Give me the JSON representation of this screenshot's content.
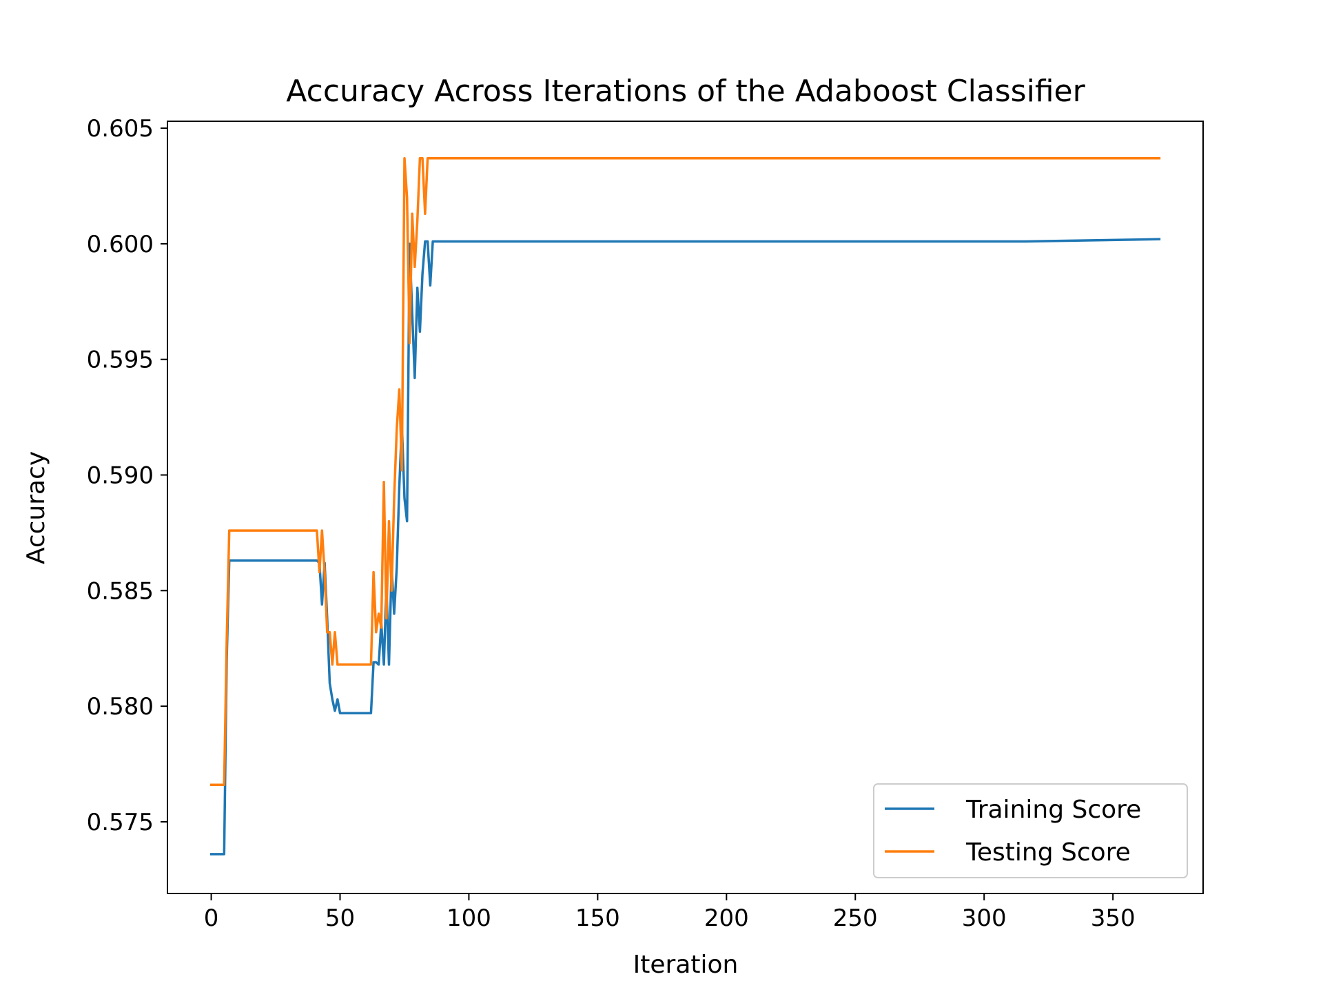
{
  "chart_data": {
    "type": "line",
    "title": "Accuracy Across Iterations of the Adaboost Classifier",
    "xlabel": "Iteration",
    "ylabel": "Accuracy",
    "xlim": [
      -17,
      385
    ],
    "ylim": [
      0.5719,
      0.6053
    ],
    "xticks": [
      0,
      50,
      100,
      150,
      200,
      250,
      300,
      350
    ],
    "yticks": [
      0.575,
      0.58,
      0.585,
      0.59,
      0.595,
      0.6,
      0.605
    ],
    "xtick_labels": [
      "0",
      "50",
      "100",
      "150",
      "200",
      "250",
      "300",
      "350"
    ],
    "ytick_labels": [
      "0.575",
      "0.580",
      "0.585",
      "0.590",
      "0.595",
      "0.600",
      "0.605"
    ],
    "grid": false,
    "legend_position": "lower-right",
    "series": [
      {
        "name": "Training Score",
        "color": "#1f77b4",
        "x": [
          0,
          5,
          6,
          7,
          41,
          42,
          43,
          44,
          45,
          46,
          47,
          48,
          49,
          50,
          62,
          63,
          64,
          65,
          66,
          67,
          68,
          69,
          70,
          71,
          72,
          73,
          74,
          75,
          76,
          77,
          78,
          79,
          80,
          81,
          82,
          83,
          84,
          85,
          86,
          87,
          88,
          316,
          368
        ],
        "values": [
          0.5736,
          0.5736,
          0.582,
          0.5863,
          0.5863,
          0.5862,
          0.5844,
          0.5862,
          0.5838,
          0.581,
          0.5803,
          0.5798,
          0.5803,
          0.5797,
          0.5797,
          0.5819,
          0.5819,
          0.5818,
          0.5836,
          0.5818,
          0.5852,
          0.5818,
          0.586,
          0.584,
          0.586,
          0.5895,
          0.5922,
          0.589,
          0.588,
          0.6,
          0.597,
          0.5942,
          0.5981,
          0.5962,
          0.5987,
          0.6001,
          0.6001,
          0.5982,
          0.6001,
          0.6001,
          0.6001,
          0.6001,
          0.6002
        ]
      },
      {
        "name": "Testing Score",
        "color": "#ff7f0e",
        "x": [
          0,
          5,
          6,
          7,
          41,
          42,
          43,
          44,
          45,
          46,
          47,
          48,
          49,
          50,
          62,
          63,
          64,
          65,
          66,
          67,
          68,
          69,
          70,
          71,
          72,
          73,
          74,
          75,
          76,
          77,
          78,
          79,
          80,
          81,
          82,
          83,
          84,
          85,
          86,
          87,
          88,
          316,
          368
        ],
        "values": [
          0.5766,
          0.5766,
          0.5828,
          0.5876,
          0.5876,
          0.5858,
          0.5876,
          0.5858,
          0.5832,
          0.5832,
          0.5818,
          0.5832,
          0.5818,
          0.5818,
          0.5818,
          0.5858,
          0.5832,
          0.584,
          0.5834,
          0.5897,
          0.5838,
          0.588,
          0.585,
          0.589,
          0.592,
          0.5937,
          0.5902,
          0.6037,
          0.602,
          0.5957,
          0.6013,
          0.599,
          0.601,
          0.6037,
          0.6037,
          0.6013,
          0.6037,
          0.6037,
          0.6037,
          0.6037,
          0.6037,
          0.6037,
          0.6037
        ]
      }
    ]
  }
}
